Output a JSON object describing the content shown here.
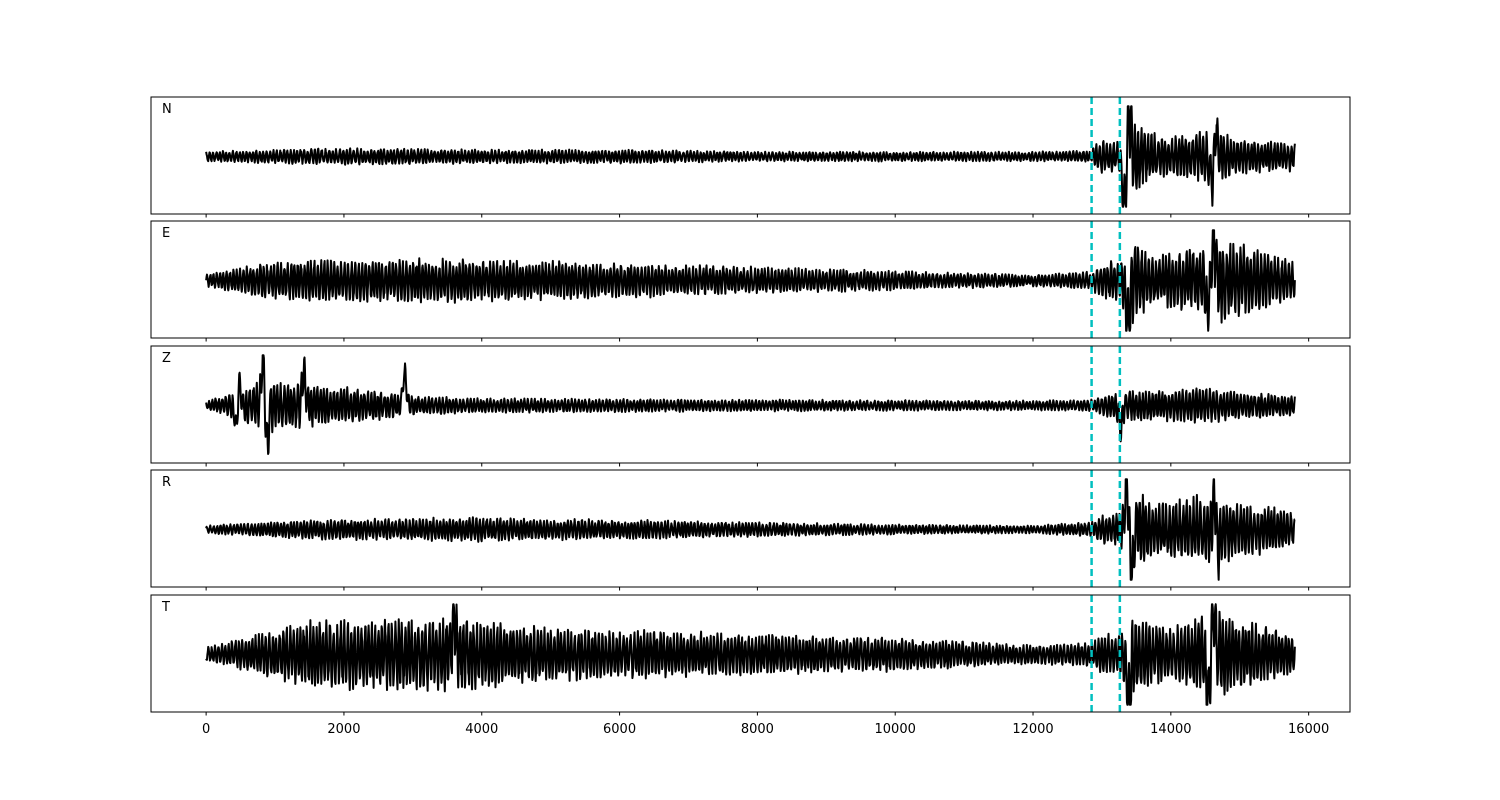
{
  "chart_data": {
    "type": "line",
    "xlim": [
      -800,
      16600
    ],
    "x_ticks": [
      0,
      2000,
      4000,
      6000,
      8000,
      10000,
      12000,
      14000,
      16000
    ],
    "x_tick_labels": [
      "0",
      "2000",
      "4000",
      "6000",
      "8000",
      "10000",
      "12000",
      "14000",
      "16000"
    ],
    "trace_range": [
      0,
      15800
    ],
    "grid": false,
    "colors": {
      "trace": "#000000",
      "markers": "#00bfbf",
      "frame": "#000000"
    },
    "markers": {
      "style": "dashed",
      "x": [
        12850,
        13260
      ]
    },
    "panels": [
      {
        "label": "N",
        "amplitude_envelope": [
          [
            0,
            0.1
          ],
          [
            2000,
            0.18
          ],
          [
            4000,
            0.14
          ],
          [
            6000,
            0.14
          ],
          [
            8000,
            0.1
          ],
          [
            10000,
            0.1
          ],
          [
            12000,
            0.1
          ],
          [
            12850,
            0.12
          ],
          [
            12950,
            0.35
          ],
          [
            13260,
            0.3
          ],
          [
            13400,
            1.0
          ],
          [
            13600,
            0.55
          ],
          [
            14000,
            0.4
          ],
          [
            14600,
            0.55
          ],
          [
            15000,
            0.35
          ],
          [
            15800,
            0.3
          ]
        ],
        "events": [
          {
            "x": 13400,
            "amp": 0.9
          },
          {
            "x": 13320,
            "amp": -0.95
          },
          {
            "x": 14650,
            "amp": 0.5
          },
          {
            "x": 14600,
            "amp": -0.55
          }
        ]
      },
      {
        "label": "E",
        "amplitude_envelope": [
          [
            0,
            0.12
          ],
          [
            800,
            0.35
          ],
          [
            1500,
            0.45
          ],
          [
            3500,
            0.45
          ],
          [
            5000,
            0.4
          ],
          [
            7500,
            0.3
          ],
          [
            10000,
            0.2
          ],
          [
            12000,
            0.12
          ],
          [
            12850,
            0.18
          ],
          [
            13000,
            0.4
          ],
          [
            13260,
            0.4
          ],
          [
            13400,
            0.95
          ],
          [
            13800,
            0.5
          ],
          [
            14500,
            0.7
          ],
          [
            14650,
            0.9
          ],
          [
            15800,
            0.4
          ]
        ],
        "events": [
          {
            "x": 13380,
            "amp": -0.95
          },
          {
            "x": 14620,
            "amp": 0.85
          },
          {
            "x": 14530,
            "amp": -0.6
          }
        ]
      },
      {
        "label": "Z",
        "amplitude_envelope": [
          [
            0,
            0.08
          ],
          [
            450,
            0.3
          ],
          [
            900,
            0.55
          ],
          [
            1500,
            0.45
          ],
          [
            2500,
            0.3
          ],
          [
            3000,
            0.2
          ],
          [
            4000,
            0.15
          ],
          [
            8000,
            0.12
          ],
          [
            12000,
            0.1
          ],
          [
            12850,
            0.12
          ],
          [
            13300,
            0.35
          ],
          [
            13500,
            0.3
          ],
          [
            14500,
            0.35
          ],
          [
            15800,
            0.2
          ]
        ],
        "events": [
          {
            "x": 470,
            "amp": 0.95
          },
          {
            "x": 450,
            "amp": -0.95
          },
          {
            "x": 830,
            "amp": 1.0
          },
          {
            "x": 880,
            "amp": -0.85
          },
          {
            "x": 1420,
            "amp": 0.65
          },
          {
            "x": 2880,
            "amp": 0.65
          },
          {
            "x": 13270,
            "amp": -0.45
          }
        ]
      },
      {
        "label": "R",
        "amplitude_envelope": [
          [
            0,
            0.08
          ],
          [
            1500,
            0.2
          ],
          [
            4000,
            0.25
          ],
          [
            6000,
            0.2
          ],
          [
            8000,
            0.15
          ],
          [
            10000,
            0.1
          ],
          [
            12000,
            0.08
          ],
          [
            12850,
            0.15
          ],
          [
            13000,
            0.3
          ],
          [
            13260,
            0.35
          ],
          [
            13400,
            0.95
          ],
          [
            13800,
            0.55
          ],
          [
            14600,
            0.75
          ],
          [
            15800,
            0.35
          ]
        ],
        "events": [
          {
            "x": 13360,
            "amp": 1.0
          },
          {
            "x": 13430,
            "amp": -1.0
          },
          {
            "x": 14640,
            "amp": 0.8
          },
          {
            "x": 14680,
            "amp": -0.55
          }
        ]
      },
      {
        "label": "T",
        "amplitude_envelope": [
          [
            0,
            0.15
          ],
          [
            700,
            0.4
          ],
          [
            1500,
            0.7
          ],
          [
            3500,
            0.75
          ],
          [
            5000,
            0.55
          ],
          [
            7500,
            0.45
          ],
          [
            10000,
            0.35
          ],
          [
            12000,
            0.2
          ],
          [
            12850,
            0.25
          ],
          [
            13000,
            0.45
          ],
          [
            13260,
            0.4
          ],
          [
            13400,
            0.9
          ],
          [
            14000,
            0.55
          ],
          [
            14600,
            0.95
          ],
          [
            15800,
            0.4
          ]
        ],
        "events": [
          {
            "x": 3600,
            "amp": 0.75
          },
          {
            "x": 13390,
            "amp": -1.0
          },
          {
            "x": 14620,
            "amp": 0.9
          },
          {
            "x": 14540,
            "amp": -0.95
          }
        ]
      }
    ]
  }
}
